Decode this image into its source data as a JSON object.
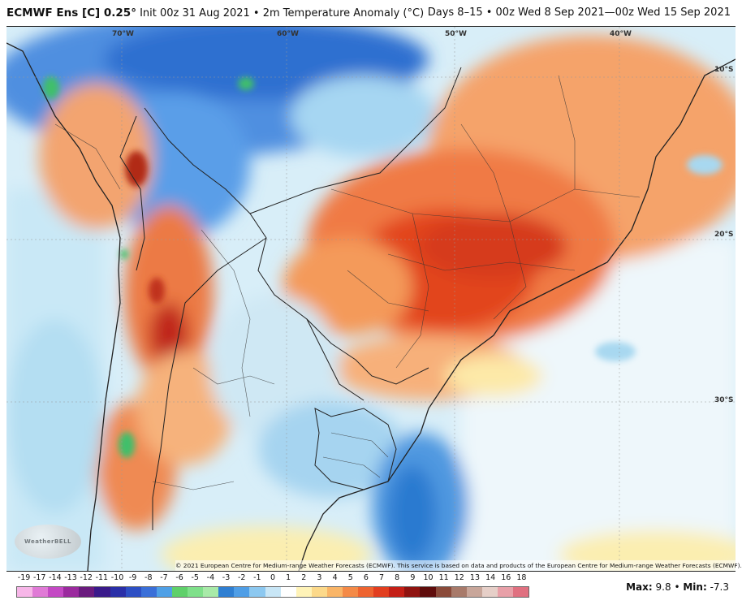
{
  "header": {
    "model": "ECMWF Ens [C] 0.25°",
    "init": "Init 00z 31 Aug 2021",
    "bullet": "•",
    "variable": "2m Temperature Anomaly (°C)",
    "valid": "Days 8–15 • 00z Wed 8 Sep 2021—00z Wed 15 Sep 2021"
  },
  "map": {
    "lon_labels": [
      "70°W",
      "60°W",
      "50°W",
      "40°W"
    ],
    "lat_labels": [
      "10°S",
      "20°S",
      "30°S"
    ]
  },
  "credit": "© 2021 European Centre for Medium-range Weather Forecasts (ECMWF). This service is based on data and products of the European Centre for Medium-range Weather Forecasts (ECMWF).",
  "logo": "WeatherBELL",
  "legend": {
    "ticks": [
      "-19",
      "-17",
      "-14",
      "-13",
      "-12",
      "-11",
      "-10",
      "-9",
      "-8",
      "-7",
      "-6",
      "-5",
      "-4",
      "-3",
      "-2",
      "-1",
      "0",
      "1",
      "2",
      "3",
      "4",
      "5",
      "6",
      "7",
      "8",
      "9",
      "10",
      "11",
      "12",
      "13",
      "14",
      "16",
      "18"
    ],
    "colors": [
      "#f7b6e8",
      "#e07ad6",
      "#c449c4",
      "#9b2a9e",
      "#6a1b7e",
      "#3a1a8a",
      "#2a2fa8",
      "#2d4fc4",
      "#3a6fd8",
      "#4fa0e6",
      "#5fd06a",
      "#7fe08a",
      "#a8eaa8",
      "#2f7fd2",
      "#4f9ee6",
      "#8cc8f0",
      "#c8e6f6",
      "#ffffff",
      "#fff3b8",
      "#fcd98a",
      "#f9b567",
      "#f48a47",
      "#ee6430",
      "#e23e1f",
      "#c41f16",
      "#8f1310",
      "#5f0d0c",
      "#8a4a3a",
      "#a87a6a",
      "#c8a69a",
      "#e6cfc8",
      "#e8a0a8",
      "#e07080"
    ]
  },
  "stats": {
    "max_label": "Max:",
    "max_value": "9.8",
    "sep": "•",
    "min_label": "Min:",
    "min_value": "-7.3"
  },
  "accent": {
    "warm": "#e8431c",
    "cool": "#2f7fd2",
    "border": "#222222"
  }
}
